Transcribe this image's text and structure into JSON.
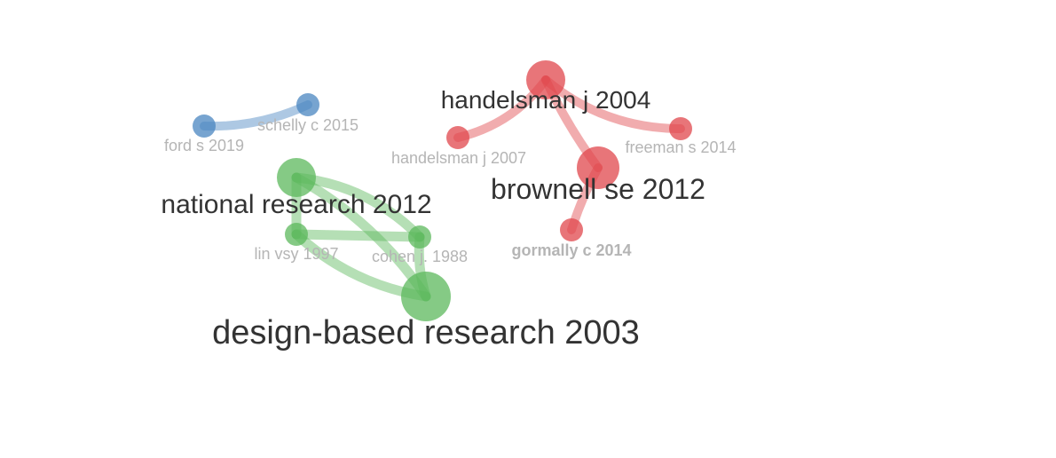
{
  "colors": {
    "cluster_red": "#e0474c",
    "cluster_green": "#5cb85c",
    "cluster_blue": "#4a86c0",
    "label_dark": "#333333",
    "label_light": "#b5b5b5"
  },
  "nodes": [
    {
      "id": "handelsman_2004",
      "label": "handelsman j 2004",
      "cluster": "red",
      "tone": "dark"
    },
    {
      "id": "handelsman_2007",
      "label": "handelsman j 2007",
      "cluster": "red",
      "tone": "light"
    },
    {
      "id": "freeman_2014",
      "label": "freeman s 2014",
      "cluster": "red",
      "tone": "light"
    },
    {
      "id": "brownell_2012",
      "label": "brownell se 2012",
      "cluster": "red",
      "tone": "dark"
    },
    {
      "id": "gormally_2014",
      "label": "gormally c 2014",
      "cluster": "red",
      "tone": "light"
    },
    {
      "id": "ford_2019",
      "label": "ford s 2019",
      "cluster": "blue",
      "tone": "light"
    },
    {
      "id": "schelly_2015",
      "label": "schelly c 2015",
      "cluster": "blue",
      "tone": "light"
    },
    {
      "id": "national_2012",
      "label": "national research 2012",
      "cluster": "green",
      "tone": "dark"
    },
    {
      "id": "lin_1997",
      "label": "lin vsy 1997",
      "cluster": "green",
      "tone": "light"
    },
    {
      "id": "cohen_1988",
      "label": "cohen j. 1988",
      "cluster": "green",
      "tone": "light"
    },
    {
      "id": "dbr_2003",
      "label": "design-based research 2003",
      "cluster": "green",
      "tone": "dark"
    }
  ],
  "edges": [
    {
      "from": "handelsman_2004",
      "to": "handelsman_2007",
      "cluster": "red"
    },
    {
      "from": "handelsman_2004",
      "to": "freeman_2014",
      "cluster": "red"
    },
    {
      "from": "handelsman_2004",
      "to": "brownell_2012",
      "cluster": "red"
    },
    {
      "from": "brownell_2012",
      "to": "gormally_2014",
      "cluster": "red"
    },
    {
      "from": "ford_2019",
      "to": "schelly_2015",
      "cluster": "blue"
    },
    {
      "from": "national_2012",
      "to": "lin_1997",
      "cluster": "green"
    },
    {
      "from": "national_2012",
      "to": "cohen_1988",
      "cluster": "green"
    },
    {
      "from": "national_2012",
      "to": "dbr_2003",
      "cluster": "green"
    },
    {
      "from": "lin_1997",
      "to": "cohen_1988",
      "cluster": "green"
    },
    {
      "from": "lin_1997",
      "to": "dbr_2003",
      "cluster": "green"
    },
    {
      "from": "cohen_1988",
      "to": "dbr_2003",
      "cluster": "green"
    }
  ]
}
